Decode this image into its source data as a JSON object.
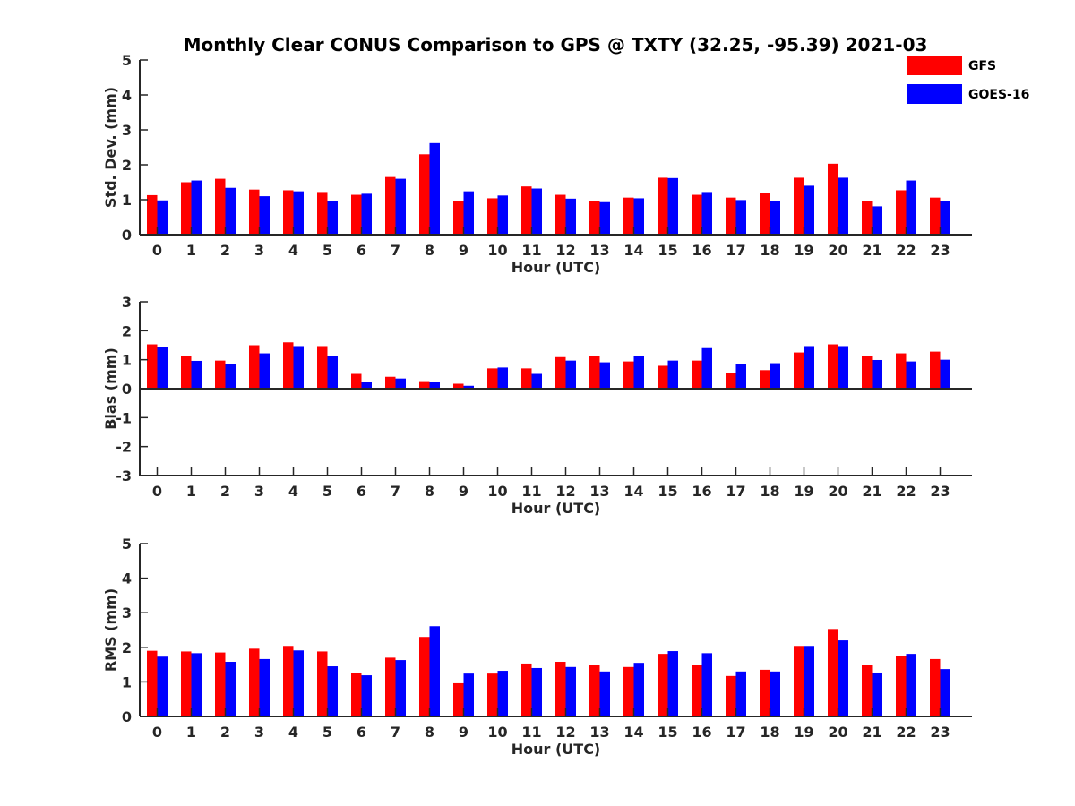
{
  "title": "Monthly Clear CONUS Comparison to GPS @ TXTY (32.25, -95.39) 2021-03",
  "legend": {
    "position": "top-right",
    "entries": [
      {
        "name": "GFS",
        "color": "#ff0000"
      },
      {
        "name": "GOES-16",
        "color": "#0000ff"
      }
    ]
  },
  "chart_data": [
    {
      "type": "bar",
      "xlabel": "Hour (UTC)",
      "ylabel": "Std. Dev. (mm)",
      "ylim": [
        0,
        5
      ],
      "yticks": [
        0,
        1,
        2,
        3,
        4,
        5
      ],
      "categories": [
        "0",
        "1",
        "2",
        "3",
        "4",
        "5",
        "6",
        "7",
        "8",
        "9",
        "10",
        "11",
        "12",
        "13",
        "14",
        "15",
        "16",
        "17",
        "18",
        "19",
        "20",
        "21",
        "22",
        "23"
      ],
      "series": [
        {
          "name": "GFS",
          "color": "#ff0000",
          "values": [
            1.13,
            1.5,
            1.6,
            1.29,
            1.27,
            1.22,
            1.14,
            1.65,
            2.3,
            0.96,
            1.04,
            1.38,
            1.14,
            0.97,
            1.06,
            1.63,
            1.14,
            1.06,
            1.2,
            1.63,
            2.03,
            0.96,
            1.27,
            1.06
          ]
        },
        {
          "name": "GOES-16",
          "color": "#0000ff",
          "values": [
            0.98,
            1.55,
            1.34,
            1.1,
            1.24,
            0.95,
            1.17,
            1.6,
            2.62,
            1.24,
            1.12,
            1.32,
            1.03,
            0.93,
            1.04,
            1.62,
            1.22,
            0.99,
            0.97,
            1.4,
            1.63,
            0.81,
            1.55,
            0.95
          ]
        }
      ]
    },
    {
      "type": "bar",
      "xlabel": "Hour (UTC)",
      "ylabel": "Bias (mm)",
      "ylim": [
        -3,
        3
      ],
      "yticks": [
        -3,
        -2,
        -1,
        0,
        1,
        2,
        3
      ],
      "categories": [
        "0",
        "1",
        "2",
        "3",
        "4",
        "5",
        "6",
        "7",
        "8",
        "9",
        "10",
        "11",
        "12",
        "13",
        "14",
        "15",
        "16",
        "17",
        "18",
        "19",
        "20",
        "21",
        "22",
        "23"
      ],
      "series": [
        {
          "name": "GFS",
          "color": "#ff0000",
          "values": [
            1.53,
            1.12,
            0.97,
            1.5,
            1.6,
            1.47,
            0.51,
            0.41,
            0.26,
            0.17,
            0.7,
            0.7,
            1.09,
            1.12,
            0.94,
            0.79,
            0.97,
            0.54,
            0.64,
            1.25,
            1.53,
            1.12,
            1.22,
            1.28
          ]
        },
        {
          "name": "GOES-16",
          "color": "#0000ff",
          "values": [
            1.44,
            0.96,
            0.84,
            1.22,
            1.47,
            1.12,
            0.23,
            0.35,
            0.23,
            0.1,
            0.73,
            0.51,
            0.97,
            0.91,
            1.12,
            0.97,
            1.4,
            0.84,
            0.88,
            1.47,
            1.47,
            0.99,
            0.94,
            1.0
          ]
        }
      ]
    },
    {
      "type": "bar",
      "xlabel": "Hour (UTC)",
      "ylabel": "RMS (mm)",
      "ylim": [
        0,
        5
      ],
      "yticks": [
        0,
        1,
        2,
        3,
        4,
        5
      ],
      "categories": [
        "0",
        "1",
        "2",
        "3",
        "4",
        "5",
        "6",
        "7",
        "8",
        "9",
        "10",
        "11",
        "12",
        "13",
        "14",
        "15",
        "16",
        "17",
        "18",
        "19",
        "20",
        "21",
        "22",
        "23"
      ],
      "series": [
        {
          "name": "GFS",
          "color": "#ff0000",
          "values": [
            1.9,
            1.88,
            1.85,
            1.96,
            2.04,
            1.88,
            1.25,
            1.7,
            2.3,
            0.96,
            1.24,
            1.53,
            1.58,
            1.48,
            1.43,
            1.81,
            1.5,
            1.17,
            1.35,
            2.04,
            2.53,
            1.48,
            1.76,
            1.66
          ]
        },
        {
          "name": "GOES-16",
          "color": "#0000ff",
          "values": [
            1.73,
            1.83,
            1.58,
            1.66,
            1.91,
            1.45,
            1.19,
            1.63,
            2.61,
            1.24,
            1.32,
            1.4,
            1.43,
            1.3,
            1.55,
            1.89,
            1.83,
            1.3,
            1.3,
            2.04,
            2.2,
            1.27,
            1.81,
            1.37
          ]
        }
      ]
    }
  ]
}
